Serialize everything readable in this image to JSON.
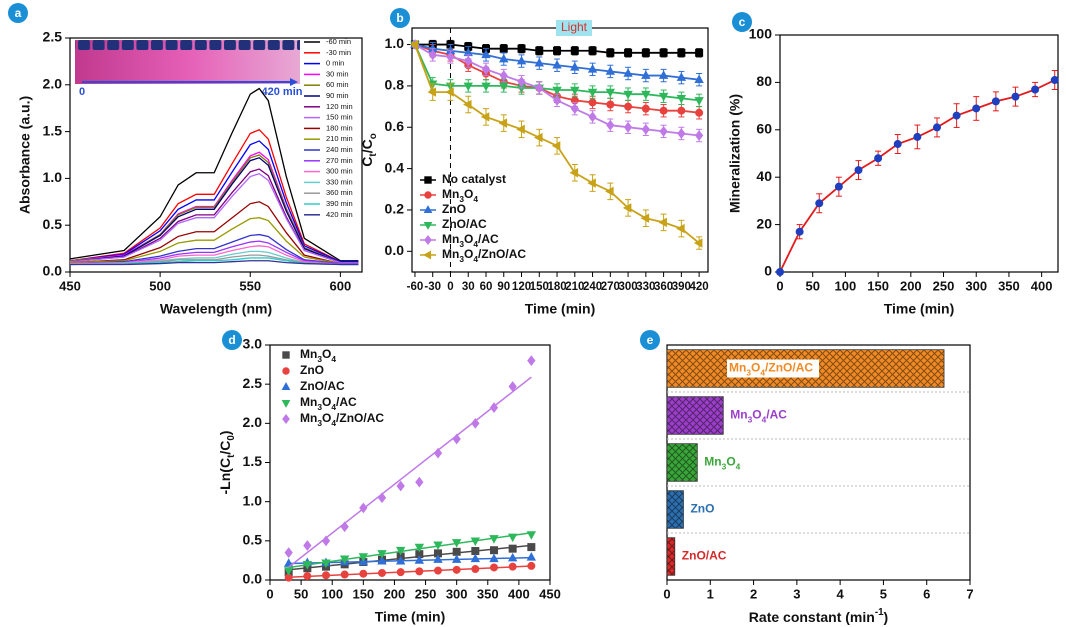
{
  "chart_data": [
    {
      "type": "line",
      "panel_label": "a",
      "xlabel": "Wavelength (nm)",
      "ylabel": "Absorbance (a.u.)",
      "inset_labels": [
        "0",
        "420 min"
      ],
      "x": [
        450,
        480,
        500,
        510,
        520,
        530,
        540,
        550,
        555,
        560,
        570,
        580,
        600,
        610
      ],
      "xlim": [
        450,
        612
      ],
      "xticks": [
        450,
        500,
        550,
        600
      ],
      "ylim": [
        0,
        2.5
      ],
      "yticks": [
        {
          "value": 0,
          "label": "0.0"
        },
        0.5,
        {
          "value": 1,
          "label": "1.0"
        },
        1.5,
        {
          "value": 2,
          "label": "2.0"
        },
        2.5
      ],
      "legend": "right",
      "series": [
        {
          "name": "-60 min",
          "color": "#000000",
          "values": [
            0.14,
            0.23,
            0.59,
            0.93,
            1.06,
            1.06,
            1.49,
            1.9,
            1.96,
            1.83,
            1.02,
            0.36,
            0.12,
            0.12
          ]
        },
        {
          "name": "-30 min",
          "color": "#ff0000",
          "values": [
            0.12,
            0.2,
            0.47,
            0.73,
            0.83,
            0.83,
            1.16,
            1.48,
            1.52,
            1.42,
            0.8,
            0.3,
            0.11,
            0.11
          ]
        },
        {
          "name": "0 min",
          "color": "#0000ff",
          "values": [
            0.12,
            0.19,
            0.44,
            0.67,
            0.77,
            0.77,
            1.07,
            1.36,
            1.4,
            1.31,
            0.74,
            0.28,
            0.11,
            0.11
          ]
        },
        {
          "name": "30 min",
          "color": "#ff00ff",
          "values": [
            0.12,
            0.18,
            0.4,
            0.62,
            0.7,
            0.7,
            0.98,
            1.24,
            1.28,
            1.2,
            0.68,
            0.26,
            0.1,
            0.1
          ]
        },
        {
          "name": "60 min",
          "color": "#808000",
          "values": [
            0.12,
            0.17,
            0.4,
            0.61,
            0.69,
            0.69,
            0.96,
            1.22,
            1.25,
            1.17,
            0.67,
            0.26,
            0.1,
            0.1
          ]
        },
        {
          "name": "90 min",
          "color": "#000080",
          "values": [
            0.11,
            0.17,
            0.39,
            0.59,
            0.67,
            0.67,
            0.94,
            1.19,
            1.22,
            1.14,
            0.65,
            0.25,
            0.1,
            0.1
          ]
        },
        {
          "name": "120 min",
          "color": "#800080",
          "values": [
            0.11,
            0.16,
            0.36,
            0.54,
            0.61,
            0.61,
            0.85,
            1.07,
            1.1,
            1.03,
            0.59,
            0.23,
            0.1,
            0.1
          ]
        },
        {
          "name": "150 min",
          "color": "#b266ff",
          "values": [
            0.11,
            0.16,
            0.34,
            0.52,
            0.58,
            0.58,
            0.81,
            1.02,
            1.05,
            0.98,
            0.57,
            0.23,
            0.1,
            0.1
          ]
        },
        {
          "name": "180 min",
          "color": "#990000",
          "values": [
            0.1,
            0.13,
            0.26,
            0.38,
            0.43,
            0.43,
            0.58,
            0.73,
            0.75,
            0.7,
            0.42,
            0.18,
            0.09,
            0.09
          ]
        },
        {
          "name": "210 min",
          "color": "#999900",
          "values": [
            0.1,
            0.12,
            0.22,
            0.31,
            0.34,
            0.34,
            0.46,
            0.57,
            0.58,
            0.55,
            0.33,
            0.16,
            0.09,
            0.09
          ]
        },
        {
          "name": "240 min",
          "color": "#3333cc",
          "values": [
            0.09,
            0.11,
            0.17,
            0.22,
            0.25,
            0.25,
            0.32,
            0.39,
            0.4,
            0.38,
            0.24,
            0.13,
            0.09,
            0.09
          ]
        },
        {
          "name": "270 min",
          "color": "#9933ff",
          "values": [
            0.09,
            0.1,
            0.15,
            0.19,
            0.21,
            0.21,
            0.27,
            0.32,
            0.33,
            0.31,
            0.21,
            0.12,
            0.09,
            0.09
          ]
        },
        {
          "name": "300 min",
          "color": "#ff66cc",
          "values": [
            0.09,
            0.1,
            0.13,
            0.17,
            0.18,
            0.18,
            0.23,
            0.27,
            0.28,
            0.27,
            0.18,
            0.11,
            0.08,
            0.08
          ]
        },
        {
          "name": "330 min",
          "color": "#66cccc",
          "values": [
            0.08,
            0.09,
            0.12,
            0.14,
            0.15,
            0.15,
            0.19,
            0.22,
            0.22,
            0.21,
            0.15,
            0.1,
            0.08,
            0.08
          ]
        },
        {
          "name": "360 min",
          "color": "#999999",
          "values": [
            0.08,
            0.09,
            0.11,
            0.13,
            0.13,
            0.13,
            0.16,
            0.18,
            0.18,
            0.17,
            0.13,
            0.1,
            0.08,
            0.08
          ]
        },
        {
          "name": "390 min",
          "color": "#33cccc",
          "values": [
            0.08,
            0.09,
            0.1,
            0.11,
            0.12,
            0.12,
            0.13,
            0.15,
            0.15,
            0.15,
            0.12,
            0.09,
            0.08,
            0.08
          ]
        },
        {
          "name": "420 min",
          "color": "#333399",
          "values": [
            0.08,
            0.08,
            0.09,
            0.1,
            0.1,
            0.1,
            0.11,
            0.12,
            0.12,
            0.12,
            0.1,
            0.09,
            0.08,
            0.08
          ]
        }
      ]
    },
    {
      "type": "line",
      "panel_label": "b",
      "xlabel": "Time (min)",
      "ylabel": "Ct/Co",
      "annotation": "Light",
      "vline": 0,
      "x": [
        -60,
        -30,
        0,
        30,
        60,
        90,
        120,
        150,
        180,
        210,
        240,
        270,
        300,
        330,
        360,
        390,
        420
      ],
      "xlim": [
        -65,
        435
      ],
      "xticks": [
        -60,
        -30,
        0,
        30,
        60,
        90,
        120,
        150,
        180,
        210,
        240,
        270,
        300,
        330,
        360,
        390,
        420
      ],
      "ylim": [
        -0.1,
        1.08
      ],
      "yticks": [
        {
          "value": 0,
          "label": "0.0"
        },
        0.2,
        0.4,
        0.6,
        0.8,
        {
          "value": 1,
          "label": "1.0"
        }
      ],
      "legend": "lower left",
      "series": [
        {
          "name": "No catalyst",
          "color": "#000000",
          "marker": "square",
          "values": [
            1.0,
            1.0,
            1.0,
            0.99,
            0.98,
            0.98,
            0.98,
            0.97,
            0.97,
            0.97,
            0.97,
            0.96,
            0.96,
            0.96,
            0.96,
            0.96,
            0.96
          ],
          "errors": [
            0.01,
            0.02,
            0.02,
            0.02,
            0.02,
            0.02,
            0.02,
            0.02,
            0.02,
            0.02,
            0.02,
            0.02,
            0.02,
            0.02,
            0.02,
            0.02,
            0.02
          ]
        },
        {
          "name": "Mn3O4",
          "color": "#e8423f",
          "marker": "circle",
          "values": [
            1.0,
            0.97,
            0.95,
            0.9,
            0.86,
            0.82,
            0.8,
            0.79,
            0.75,
            0.73,
            0.72,
            0.71,
            0.7,
            0.69,
            0.68,
            0.68,
            0.67
          ],
          "errors": [
            0.01,
            0.03,
            0.03,
            0.03,
            0.03,
            0.03,
            0.03,
            0.03,
            0.03,
            0.03,
            0.03,
            0.03,
            0.03,
            0.03,
            0.03,
            0.03,
            0.03
          ]
        },
        {
          "name": "ZnO",
          "color": "#2f6fd6",
          "marker": "triangle",
          "values": [
            1.0,
            0.98,
            0.97,
            0.96,
            0.95,
            0.93,
            0.92,
            0.91,
            0.9,
            0.89,
            0.88,
            0.87,
            0.86,
            0.85,
            0.85,
            0.84,
            0.83
          ],
          "errors": [
            0.01,
            0.03,
            0.03,
            0.03,
            0.03,
            0.03,
            0.03,
            0.03,
            0.03,
            0.03,
            0.03,
            0.03,
            0.03,
            0.03,
            0.03,
            0.03,
            0.03
          ]
        },
        {
          "name": "ZnO/AC",
          "color": "#2eb85c",
          "marker": "triangle-down",
          "values": [
            1.0,
            0.81,
            0.8,
            0.8,
            0.8,
            0.8,
            0.79,
            0.79,
            0.78,
            0.78,
            0.77,
            0.77,
            0.76,
            0.76,
            0.75,
            0.74,
            0.73
          ],
          "errors": [
            0.01,
            0.03,
            0.03,
            0.03,
            0.03,
            0.03,
            0.03,
            0.03,
            0.03,
            0.03,
            0.03,
            0.03,
            0.03,
            0.03,
            0.03,
            0.03,
            0.03
          ]
        },
        {
          "name": "Mn3O4/AC",
          "color": "#c07ae8",
          "marker": "diamond",
          "values": [
            1.0,
            0.95,
            0.94,
            0.92,
            0.88,
            0.85,
            0.82,
            0.79,
            0.73,
            0.69,
            0.65,
            0.61,
            0.6,
            0.59,
            0.58,
            0.57,
            0.56
          ],
          "errors": [
            0.01,
            0.03,
            0.03,
            0.03,
            0.03,
            0.03,
            0.03,
            0.03,
            0.03,
            0.03,
            0.03,
            0.03,
            0.03,
            0.03,
            0.03,
            0.03,
            0.03
          ]
        },
        {
          "name": "Mn3O4/ZnO/AC",
          "color": "#c8a217",
          "marker": "triangle-left",
          "values": [
            1.0,
            0.77,
            0.77,
            0.71,
            0.65,
            0.62,
            0.59,
            0.55,
            0.51,
            0.38,
            0.33,
            0.29,
            0.21,
            0.16,
            0.14,
            0.11,
            0.04
          ],
          "errors": [
            0.01,
            0.04,
            0.04,
            0.04,
            0.04,
            0.04,
            0.04,
            0.04,
            0.04,
            0.04,
            0.04,
            0.04,
            0.04,
            0.04,
            0.04,
            0.04,
            0.03
          ]
        }
      ]
    },
    {
      "type": "line",
      "panel_label": "c",
      "xlabel": "Time (min)",
      "ylabel": "Mineralization (%)",
      "x": [
        0,
        30,
        60,
        90,
        120,
        150,
        180,
        210,
        240,
        270,
        300,
        330,
        360,
        390,
        420
      ],
      "xlim": [
        0,
        425
      ],
      "xticks": [
        0,
        50,
        100,
        150,
        200,
        250,
        300,
        350,
        400
      ],
      "ylim": [
        0,
        100
      ],
      "yticks": [
        0,
        20,
        40,
        60,
        80,
        100
      ],
      "series": [
        {
          "color": "#e41a1c",
          "marker": "circle",
          "marker_color": "#1f3fbf",
          "values": [
            0,
            17,
            29,
            36,
            43,
            48,
            54,
            57,
            61,
            66,
            69,
            72,
            74,
            77,
            81
          ],
          "errors": [
            0,
            3,
            4,
            4,
            4,
            3,
            4,
            5,
            4,
            5,
            5,
            4,
            4,
            3,
            4
          ]
        }
      ]
    },
    {
      "type": "scatter",
      "panel_label": "d",
      "xlabel": "Time (min)",
      "ylabel": "-Ln(Ct/C0)",
      "fit": "linear",
      "x": [
        30,
        60,
        90,
        120,
        150,
        180,
        210,
        240,
        270,
        300,
        330,
        360,
        390,
        420
      ],
      "xlim": [
        0,
        450
      ],
      "xticks": [
        0,
        50,
        100,
        150,
        200,
        250,
        300,
        350,
        400,
        450
      ],
      "ylim": [
        0,
        3
      ],
      "yticks": [
        {
          "value": 0,
          "label": "0.0"
        },
        0.5,
        {
          "value": 1,
          "label": "1.0"
        },
        1.5,
        {
          "value": 2,
          "label": "2.0"
        },
        2.5,
        {
          "value": 3,
          "label": "3.0"
        }
      ],
      "legend": "upper left",
      "series": [
        {
          "name": "Mn3O4",
          "color": "#4a4a4a",
          "marker": "square",
          "values": [
            0.1,
            0.15,
            0.17,
            0.2,
            0.23,
            0.26,
            0.3,
            0.33,
            0.34,
            0.36,
            0.37,
            0.38,
            0.4,
            0.42
          ]
        },
        {
          "name": "ZnO",
          "color": "#e8423f",
          "marker": "circle",
          "values": [
            0.03,
            0.05,
            0.06,
            0.07,
            0.08,
            0.09,
            0.1,
            0.11,
            0.12,
            0.13,
            0.14,
            0.16,
            0.17,
            0.18
          ]
        },
        {
          "name": "ZnO/AC",
          "color": "#2f6fd6",
          "marker": "triangle",
          "values": [
            0.21,
            0.22,
            0.22,
            0.23,
            0.23,
            0.24,
            0.24,
            0.25,
            0.26,
            0.26,
            0.27,
            0.27,
            0.28,
            0.29
          ]
        },
        {
          "name": "Mn3O4/AC",
          "color": "#2eb85c",
          "marker": "triangle-down",
          "values": [
            0.12,
            0.2,
            0.22,
            0.27,
            0.3,
            0.34,
            0.38,
            0.42,
            0.45,
            0.48,
            0.5,
            0.53,
            0.55,
            0.58
          ]
        },
        {
          "name": "Mn3O4/ZnO/AC",
          "color": "#c07ae8",
          "marker": "diamond",
          "values": [
            0.35,
            0.44,
            0.5,
            0.68,
            0.92,
            1.05,
            1.2,
            1.25,
            1.62,
            1.8,
            2.0,
            2.2,
            2.47,
            2.8
          ]
        }
      ]
    },
    {
      "type": "bar",
      "orientation": "horizontal",
      "panel_label": "e",
      "xlabel": "Rate constant (min-1)",
      "categories": [
        "Mn3O4/ZnO/AC",
        "Mn3O4/AC",
        "Mn3O4",
        "ZnO",
        "ZnO/AC"
      ],
      "values": [
        6.4,
        1.3,
        0.7,
        0.38,
        0.18
      ],
      "colors": [
        "#f08a24",
        "#9b3fc9",
        "#3aa63a",
        "#2c6fb0",
        "#d42a2a"
      ],
      "xlim": [
        0,
        7
      ],
      "xticks": [
        0,
        1,
        2,
        3,
        4,
        5,
        6,
        7
      ]
    }
  ]
}
